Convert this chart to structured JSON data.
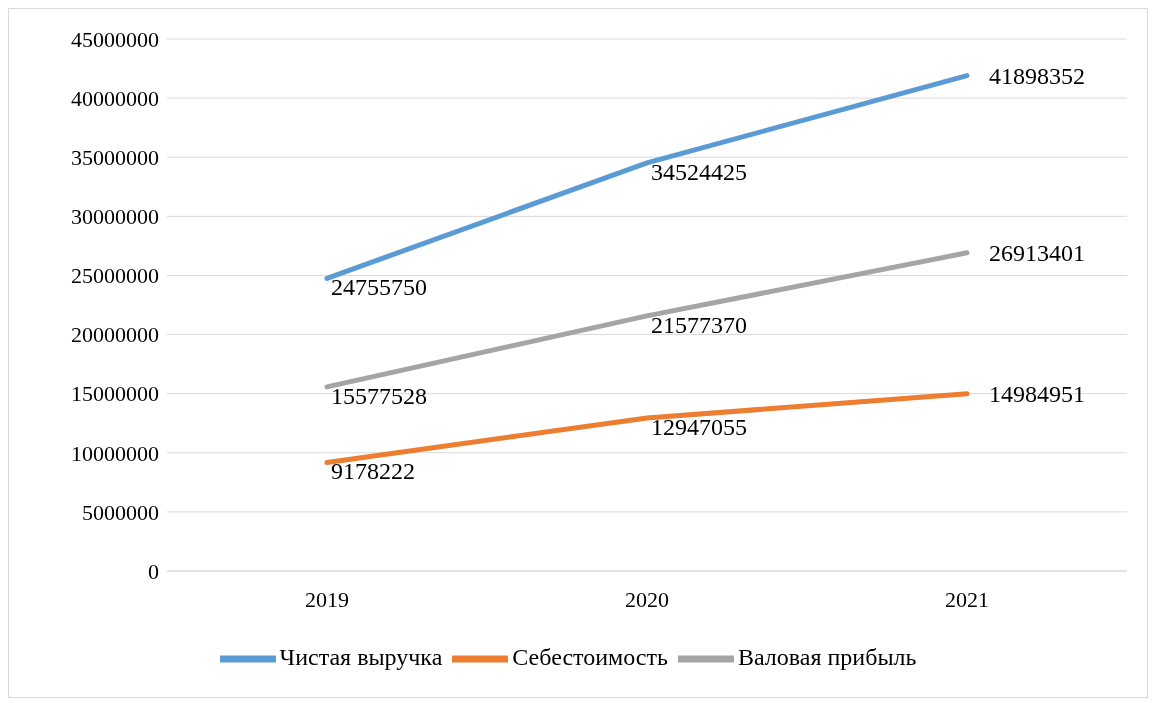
{
  "chart_data": {
    "type": "line",
    "categories": [
      "2019",
      "2020",
      "2021"
    ],
    "series": [
      {
        "name": "Чистая выручка",
        "color": "#5b9bd5",
        "values": [
          24755750,
          34524425,
          41898352
        ]
      },
      {
        "name": "Себестоимость",
        "color": "#ed7d31",
        "values": [
          9178222,
          12947055,
          14984951
        ]
      },
      {
        "name": "Валовая прибыль",
        "color": "#a5a5a5",
        "values": [
          15577528,
          21577370,
          26913401
        ]
      }
    ],
    "ylim": [
      0,
      45000000
    ],
    "yticks": [
      0,
      5000000,
      10000000,
      15000000,
      20000000,
      25000000,
      30000000,
      35000000,
      40000000,
      45000000
    ],
    "grid": "y",
    "legend": "bottom",
    "data_labels": true,
    "marker": "none",
    "line_style": "solid"
  }
}
